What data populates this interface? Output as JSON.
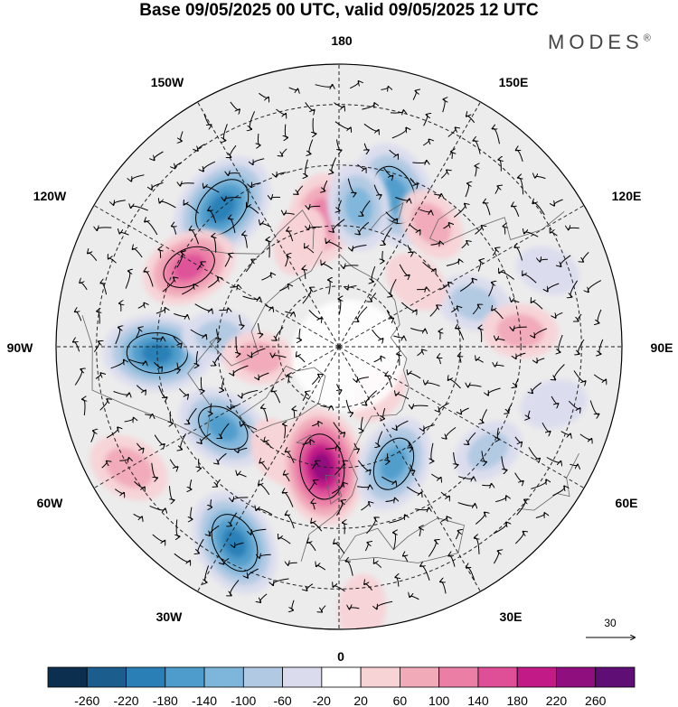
{
  "title": "Base 09/05/2025 00 UTC, valid 09/05/2025 12 UTC",
  "brand": "MODES",
  "brand_mark": "®",
  "longitude_labels": {
    "top": "180",
    "bottom": "0",
    "left": "90W",
    "right": "90E",
    "upper_left_1": "150W",
    "upper_left_2": "120W",
    "upper_right_1": "150E",
    "upper_right_2": "120E",
    "lower_left_1": "60W",
    "lower_left_2": "30W",
    "lower_right_1": "60E",
    "lower_right_2": "30E"
  },
  "vector_reference": {
    "label": "30"
  },
  "colorbar": {
    "labels": [
      "-260",
      "-220",
      "-180",
      "-140",
      "-100",
      "-60",
      "-20",
      "20",
      "60",
      "100",
      "140",
      "180",
      "220",
      "260"
    ],
    "colors": [
      "#0d2f4f",
      "#1b5d8c",
      "#2a7fb6",
      "#4e9ccb",
      "#7eb5da",
      "#b1c9e3",
      "#dadcee",
      "#ffffff",
      "#f8d3d6",
      "#f1aab8",
      "#ea7ea5",
      "#de4f98",
      "#c21a86",
      "#8f0f7e",
      "#5e0e74"
    ]
  },
  "field_anomalies": [
    {
      "lon": 160,
      "lat": 50,
      "value": -180
    },
    {
      "lon": -172,
      "lat": 58,
      "value": 130
    },
    {
      "lon": 172,
      "lat": 55,
      "value": -120
    },
    {
      "lon": 143,
      "lat": 52,
      "value": 80
    },
    {
      "lon": 108,
      "lat": 55,
      "value": -80
    },
    {
      "lon": 95,
      "lat": 45,
      "value": 80
    },
    {
      "lon": 110,
      "lat": 35,
      "value": -40
    },
    {
      "lon": -140,
      "lat": 45,
      "value": -210
    },
    {
      "lon": -118,
      "lat": 48,
      "value": 150
    },
    {
      "lon": -88,
      "lat": 45,
      "value": -190
    },
    {
      "lon": -95,
      "lat": 60,
      "value": -70
    },
    {
      "lon": -82,
      "lat": 70,
      "value": 70
    },
    {
      "lon": -60,
      "lat": 30,
      "value": 100
    },
    {
      "lon": -55,
      "lat": 55,
      "value": -150
    },
    {
      "lon": -28,
      "lat": 35,
      "value": -190
    },
    {
      "lon": -30,
      "lat": 60,
      "value": 60
    },
    {
      "lon": -8,
      "lat": 60,
      "value": 230
    },
    {
      "lon": 25,
      "lat": 58,
      "value": -150
    },
    {
      "lon": 5,
      "lat": 25,
      "value": 50
    },
    {
      "lon": 55,
      "lat": 45,
      "value": -70
    },
    {
      "lon": 75,
      "lat": 35,
      "value": -50
    },
    {
      "lon": 130,
      "lat": 65,
      "value": 50
    },
    {
      "lon": -160,
      "lat": 62,
      "value": 60
    },
    {
      "lon": 40,
      "lat": 75,
      "value": 40
    }
  ]
}
